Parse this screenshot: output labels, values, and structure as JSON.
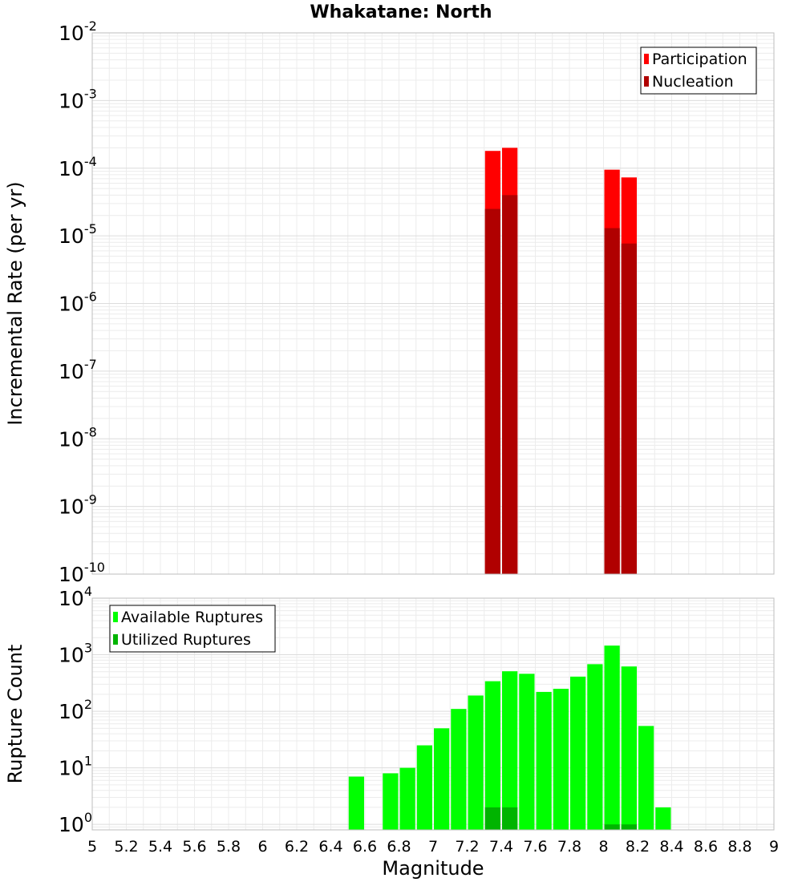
{
  "chart_data": [
    {
      "type": "bar",
      "title": "Whakatane: North",
      "xlabel": "",
      "ylabel": "Incremental Rate (per yr)",
      "xlim": [
        5,
        9
      ],
      "ylim": [
        1e-10,
        0.01
      ],
      "yscale": "log",
      "bin_width": 0.1,
      "grid": true,
      "legend_position": "top-right",
      "y_ticks": [
        {
          "base": "10",
          "exp": "-10"
        },
        {
          "base": "10",
          "exp": "-9"
        },
        {
          "base": "10",
          "exp": "-8"
        },
        {
          "base": "10",
          "exp": "-7"
        },
        {
          "base": "10",
          "exp": "-6"
        },
        {
          "base": "10",
          "exp": "-5"
        },
        {
          "base": "10",
          "exp": "-4"
        },
        {
          "base": "10",
          "exp": "-3"
        },
        {
          "base": "10",
          "exp": "-2"
        }
      ],
      "series": [
        {
          "name": "Participation",
          "color": "#ff0000",
          "x": [
            7.35,
            7.45,
            8.05,
            8.15
          ],
          "values": [
            0.00018,
            0.0002,
            9.5e-05,
            7.3e-05
          ]
        },
        {
          "name": "Nucleation",
          "color": "#b00000",
          "x": [
            7.35,
            7.45,
            8.05,
            8.15
          ],
          "values": [
            2.5e-05,
            4e-05,
            1.3e-05,
            7.7e-06
          ]
        }
      ]
    },
    {
      "type": "bar",
      "title": "",
      "xlabel": "Magnitude",
      "ylabel": "Rupture Count",
      "xlim": [
        5,
        9
      ],
      "ylim": [
        0.8,
        10000
      ],
      "yscale": "log",
      "bin_width": 0.1,
      "grid": true,
      "legend_position": "top-left",
      "x_ticks": [
        "5",
        "5.2",
        "5.4",
        "5.6",
        "5.8",
        "6",
        "6.2",
        "6.4",
        "6.6",
        "6.8",
        "7",
        "7.2",
        "7.4",
        "7.6",
        "7.8",
        "8",
        "8.2",
        "8.4",
        "8.6",
        "8.8",
        "9"
      ],
      "y_ticks": [
        {
          "base": "10",
          "exp": "0"
        },
        {
          "base": "10",
          "exp": "1"
        },
        {
          "base": "10",
          "exp": "2"
        },
        {
          "base": "10",
          "exp": "3"
        },
        {
          "base": "10",
          "exp": "4"
        }
      ],
      "series": [
        {
          "name": "Available Ruptures",
          "color": "#00ff00",
          "x": [
            6.55,
            6.75,
            6.85,
            6.95,
            7.05,
            7.15,
            7.25,
            7.35,
            7.45,
            7.55,
            7.65,
            7.75,
            7.85,
            7.95,
            8.05,
            8.15,
            8.25,
            8.35
          ],
          "values": [
            7,
            8,
            10,
            25,
            50,
            110,
            190,
            340,
            510,
            460,
            220,
            250,
            410,
            680,
            1450,
            620,
            55,
            2
          ]
        },
        {
          "name": "Utilized Ruptures",
          "color": "#00b400",
          "x": [
            7.35,
            7.45,
            8.05,
            8.15
          ],
          "values": [
            2,
            2,
            1,
            1
          ]
        }
      ]
    }
  ]
}
